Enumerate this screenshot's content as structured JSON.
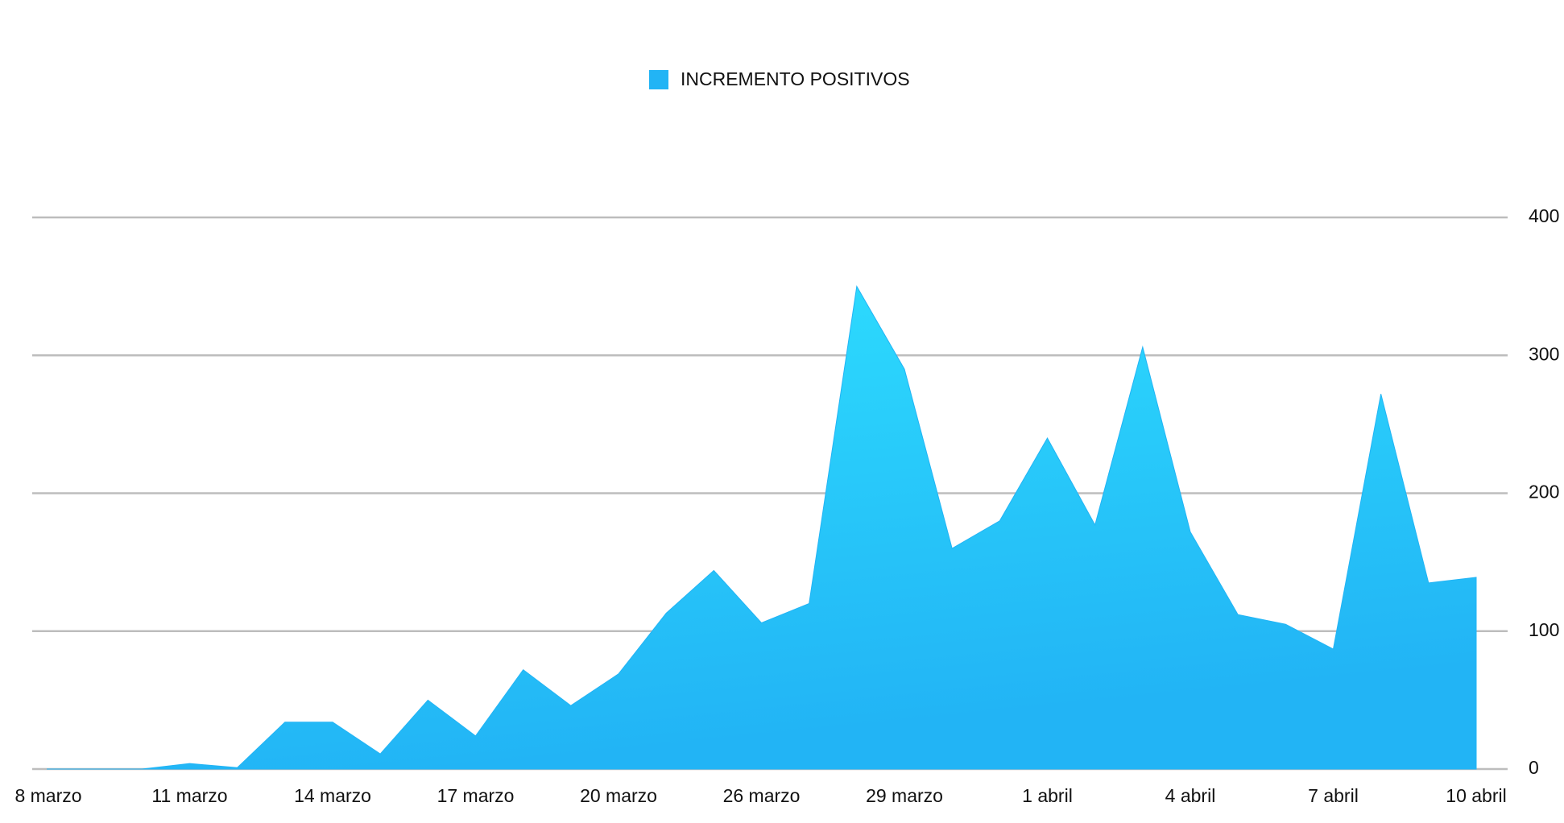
{
  "chart_data": {
    "type": "area",
    "categories": [
      "8 marzo",
      null,
      null,
      "11 marzo",
      null,
      null,
      "14 marzo",
      null,
      null,
      "17 marzo",
      null,
      null,
      "20 marzo",
      null,
      null,
      "26 marzo",
      null,
      null,
      "29 marzo",
      null,
      null,
      "1 abril",
      null,
      null,
      "4 abril",
      null,
      null,
      "7 abril",
      null,
      null,
      "10 abril"
    ],
    "series": [
      {
        "name": "INCREMENTO POSITIVOS",
        "color": "#22b4f5",
        "values": [
          0,
          0,
          0,
          4,
          1,
          34,
          34,
          11,
          50,
          24,
          72,
          46,
          69,
          113,
          144,
          106,
          120,
          350,
          290,
          160,
          180,
          240,
          177,
          306,
          172,
          112,
          105,
          87,
          272,
          135,
          139
        ]
      }
    ],
    "ylim": [
      0,
      400
    ],
    "yticks": [
      0,
      100,
      200,
      300,
      400
    ],
    "grid": true,
    "legend": "top"
  }
}
